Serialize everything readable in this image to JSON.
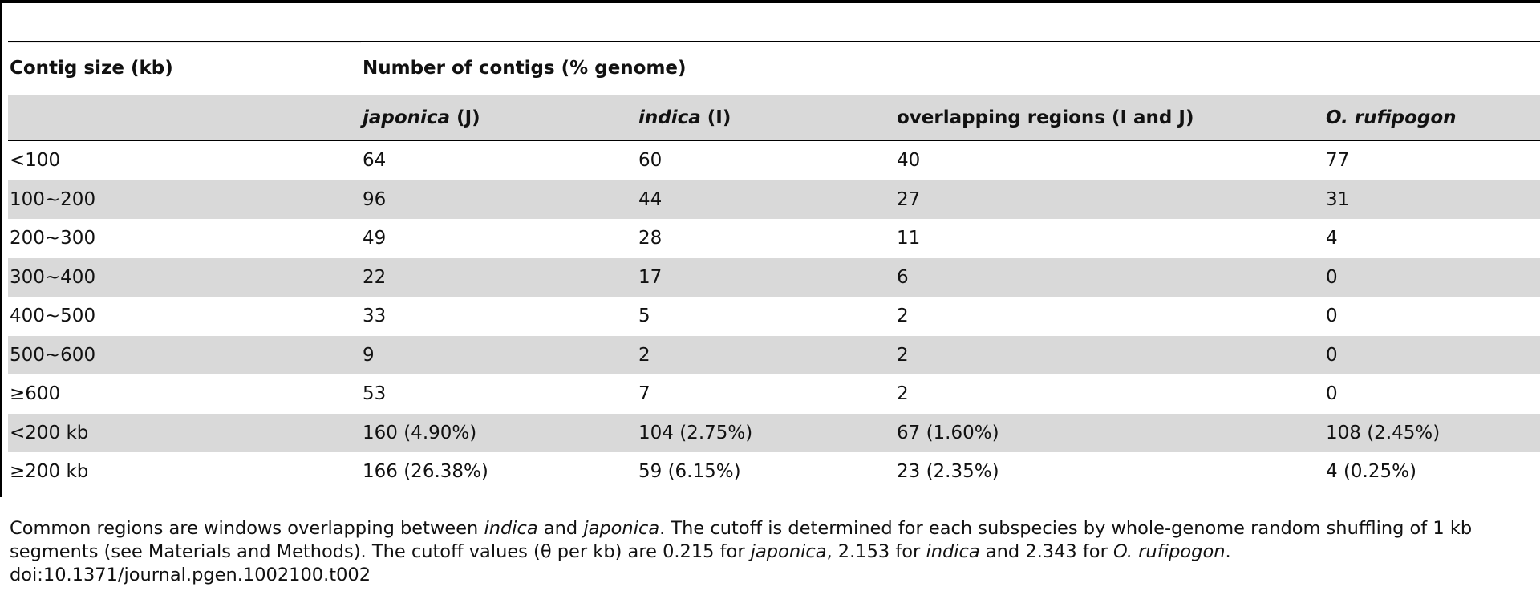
{
  "table": {
    "header": {
      "row_label": "Contig size (kb)",
      "group_label": "Number of contigs (% genome)",
      "columns": [
        {
          "italic_part": "japonica",
          "rest": " (J)"
        },
        {
          "italic_part": "indica",
          "rest": " (I)"
        },
        {
          "italic_part": "",
          "rest": "overlapping regions (I and J)"
        },
        {
          "italic_part": "O. rufipogon",
          "rest": ""
        }
      ]
    },
    "rows": [
      {
        "label": "<100",
        "values": [
          "64",
          "60",
          "40",
          "77"
        ]
      },
      {
        "label": "100~200",
        "values": [
          "96",
          "44",
          "27",
          "31"
        ]
      },
      {
        "label": "200~300",
        "values": [
          "49",
          "28",
          "11",
          "4"
        ]
      },
      {
        "label": "300~400",
        "values": [
          "22",
          "17",
          "6",
          "0"
        ]
      },
      {
        "label": "400~500",
        "values": [
          "33",
          "5",
          "2",
          "0"
        ]
      },
      {
        "label": "500~600",
        "values": [
          "9",
          "2",
          "2",
          "0"
        ]
      },
      {
        "label": "≥600",
        "values": [
          "53",
          "7",
          "2",
          "0"
        ]
      },
      {
        "label": "<200 kb",
        "values": [
          "160 (4.90%)",
          "104 (2.75%)",
          "67 (1.60%)",
          "108 (2.45%)"
        ]
      },
      {
        "label": "≥200 kb",
        "values": [
          "166 (26.38%)",
          "59 (6.15%)",
          "23 (2.35%)",
          "4 (0.25%)"
        ]
      }
    ]
  },
  "footnote": {
    "l1_a": "Common regions are windows overlapping between ",
    "l1_b": "indica",
    "l1_c": " and ",
    "l1_d": "japonica",
    "l1_e": ". The cutoff is determined for each subspecies by whole-genome random shuffling of 1 kb",
    "l2_a": "segments (see Materials and Methods). The cutoff values (θ per kb) are 0.215 for ",
    "l2_b": "japonica",
    "l2_c": ", 2.153 for ",
    "l2_d": "indica",
    "l2_e": " and 2.343 for ",
    "l2_f": "O. rufipogon",
    "l2_g": ".",
    "doi": "doi:10.1371/journal.pgen.1002100.t002"
  }
}
